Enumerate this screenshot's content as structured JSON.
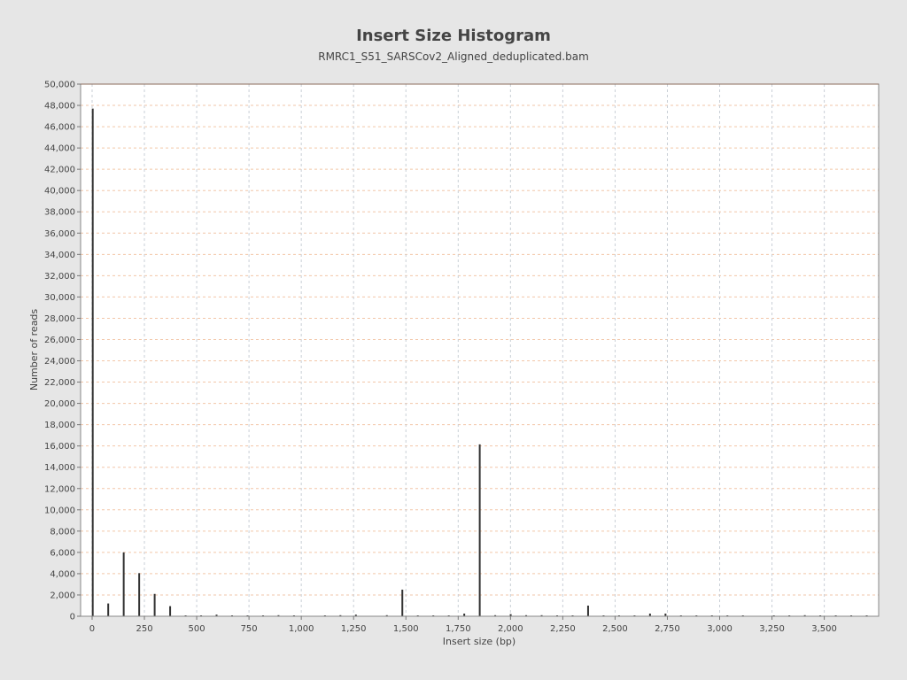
{
  "chart_data": {
    "type": "bar",
    "title": "Insert Size Histogram",
    "subtitle": "RMRC1_S51_SARSCov2_Aligned_deduplicated.bam",
    "xlabel": "Insert size (bp)",
    "ylabel": "Number of reads",
    "xlim": [
      -55,
      3760
    ],
    "ylim": [
      0,
      50000
    ],
    "x_ticks": [
      0,
      250,
      500,
      750,
      1000,
      1250,
      1500,
      1750,
      2000,
      2250,
      2500,
      2750,
      3000,
      3250,
      3500
    ],
    "x_tick_labels": [
      "0",
      "250",
      "500",
      "750",
      "1,000",
      "1,250",
      "1,500",
      "1,750",
      "2,000",
      "2,250",
      "2,500",
      "2,750",
      "3,000",
      "3,250",
      "3,500"
    ],
    "y_ticks": [
      0,
      2000,
      4000,
      6000,
      8000,
      10000,
      12000,
      14000,
      16000,
      18000,
      20000,
      22000,
      24000,
      26000,
      28000,
      30000,
      32000,
      34000,
      36000,
      38000,
      40000,
      42000,
      44000,
      46000,
      48000,
      50000
    ],
    "y_tick_labels": [
      "0",
      "2,000",
      "4,000",
      "6,000",
      "8,000",
      "10,000",
      "12,000",
      "14,000",
      "16,000",
      "18,000",
      "20,000",
      "22,000",
      "24,000",
      "26,000",
      "28,000",
      "30,000",
      "32,000",
      "34,000",
      "36,000",
      "38,000",
      "40,000",
      "42,000",
      "44,000",
      "46,000",
      "48,000",
      "50,000"
    ],
    "grid": true,
    "legend": "none",
    "bar_color": "#333333",
    "grid_color": "#f2c6a8",
    "points": [
      {
        "x": 3,
        "y": 47700
      },
      {
        "x": 77,
        "y": 1200
      },
      {
        "x": 151,
        "y": 6000
      },
      {
        "x": 225,
        "y": 4050
      },
      {
        "x": 299,
        "y": 2100
      },
      {
        "x": 373,
        "y": 950
      },
      {
        "x": 447,
        "y": 50
      },
      {
        "x": 521,
        "y": 50
      },
      {
        "x": 595,
        "y": 150
      },
      {
        "x": 669,
        "y": 50
      },
      {
        "x": 743,
        "y": 50
      },
      {
        "x": 817,
        "y": 50
      },
      {
        "x": 891,
        "y": 100
      },
      {
        "x": 965,
        "y": 50
      },
      {
        "x": 1113,
        "y": 50
      },
      {
        "x": 1187,
        "y": 100
      },
      {
        "x": 1261,
        "y": 150
      },
      {
        "x": 1409,
        "y": 100
      },
      {
        "x": 1483,
        "y": 2500
      },
      {
        "x": 1557,
        "y": 50
      },
      {
        "x": 1631,
        "y": 50
      },
      {
        "x": 1705,
        "y": 50
      },
      {
        "x": 1779,
        "y": 250
      },
      {
        "x": 1853,
        "y": 16150
      },
      {
        "x": 1927,
        "y": 100
      },
      {
        "x": 2001,
        "y": 200
      },
      {
        "x": 2075,
        "y": 100
      },
      {
        "x": 2149,
        "y": 100
      },
      {
        "x": 2223,
        "y": 50
      },
      {
        "x": 2297,
        "y": 50
      },
      {
        "x": 2371,
        "y": 1000
      },
      {
        "x": 2445,
        "y": 50
      },
      {
        "x": 2519,
        "y": 50
      },
      {
        "x": 2593,
        "y": 50
      },
      {
        "x": 2667,
        "y": 250
      },
      {
        "x": 2741,
        "y": 250
      },
      {
        "x": 2815,
        "y": 50
      },
      {
        "x": 2889,
        "y": 50
      },
      {
        "x": 2963,
        "y": 50
      },
      {
        "x": 3037,
        "y": 50
      },
      {
        "x": 3111,
        "y": 50
      },
      {
        "x": 3259,
        "y": 50
      },
      {
        "x": 3333,
        "y": 50
      },
      {
        "x": 3407,
        "y": 100
      },
      {
        "x": 3481,
        "y": 50
      },
      {
        "x": 3555,
        "y": 50
      },
      {
        "x": 3629,
        "y": 50
      },
      {
        "x": 3703,
        "y": 50
      }
    ]
  }
}
